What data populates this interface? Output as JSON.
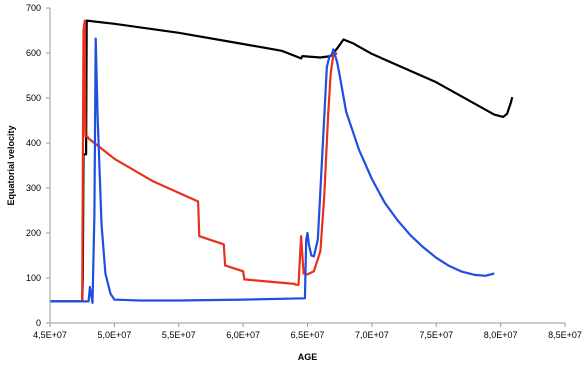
{
  "chart_data": {
    "type": "line",
    "title": "",
    "xlabel": "AGE",
    "ylabel": "Equatorial velocity",
    "xlim": [
      45000000,
      85000000
    ],
    "ylim": [
      0,
      700
    ],
    "x_ticks": [
      45000000,
      50000000,
      55000000,
      60000000,
      65000000,
      70000000,
      75000000,
      80000000,
      85000000
    ],
    "x_tick_labels": [
      "4,5E+07",
      "5,0E+07",
      "5,5E+07",
      "6,0E+07",
      "6,5E+07",
      "7,0E+07",
      "7,5E+07",
      "8,0E+07",
      "8,5E+07"
    ],
    "y_ticks": [
      0,
      100,
      200,
      300,
      400,
      500,
      600,
      700
    ],
    "y_tick_labels": [
      "0",
      "100",
      "200",
      "300",
      "400",
      "500",
      "600",
      "700"
    ],
    "grid": false,
    "legend": "none",
    "series": [
      {
        "color": "#000000",
        "x": [
          45000000,
          47500000,
          47550000,
          47600000,
          47800000,
          47850000,
          50000000,
          55000000,
          60000000,
          63000000,
          64500000,
          64600000,
          66000000,
          66800000,
          67300000,
          67800000,
          68500000,
          70000000,
          75000000,
          79500000,
          80200000,
          80500000,
          80800000,
          80900000
        ],
        "y": [
          48,
          48,
          100,
          375,
          375,
          672,
          665,
          645,
          620,
          605,
          588,
          593,
          590,
          593,
          610,
          630,
          622,
          598,
          535,
          463,
          458,
          465,
          490,
          502
        ]
      },
      {
        "color": "#e8301c",
        "x": [
          45000000,
          47500000,
          47600000,
          47700000,
          47750000,
          47850000,
          47900000,
          48000000,
          50000000,
          53000000,
          56500000,
          56600000,
          58500000,
          58600000,
          60000000,
          60100000,
          62000000,
          64000000,
          64100000,
          64300000,
          64500000,
          64700000,
          65000000,
          65500000,
          66000000,
          66300000,
          66600000,
          66800000,
          67000000,
          67300000
        ],
        "y": [
          48,
          48,
          650,
          672,
          415,
          415,
          415,
          410,
          365,
          315,
          270,
          193,
          175,
          128,
          115,
          97,
          92,
          87,
          85,
          85,
          193,
          110,
          108,
          115,
          160,
          280,
          460,
          555,
          595,
          600
        ]
      },
      {
        "color": "#1f4fe0",
        "x": [
          45000000,
          47800000,
          48000000,
          48100000,
          48300000,
          48450000,
          48550000,
          48700000,
          49000000,
          49300000,
          49700000,
          50000000,
          52000000,
          55000000,
          60000000,
          64800000,
          64900000,
          65000000,
          65100000,
          65300000,
          65500000,
          65800000,
          66200000,
          66500000,
          66700000,
          66900000,
          67000000,
          67300000,
          67500000,
          68000000,
          69000000,
          70000000,
          71000000,
          72000000,
          73000000,
          74000000,
          75000000,
          76000000,
          77000000,
          78000000,
          78800000,
          79500000
        ],
        "y": [
          48,
          48,
          48,
          80,
          45,
          240,
          632,
          460,
          220,
          110,
          65,
          52,
          50,
          50,
          52,
          55,
          185,
          200,
          175,
          150,
          148,
          185,
          400,
          568,
          592,
          598,
          608,
          580,
          550,
          470,
          385,
          320,
          267,
          228,
          195,
          168,
          145,
          127,
          114,
          107,
          105,
          110
        ]
      }
    ]
  }
}
